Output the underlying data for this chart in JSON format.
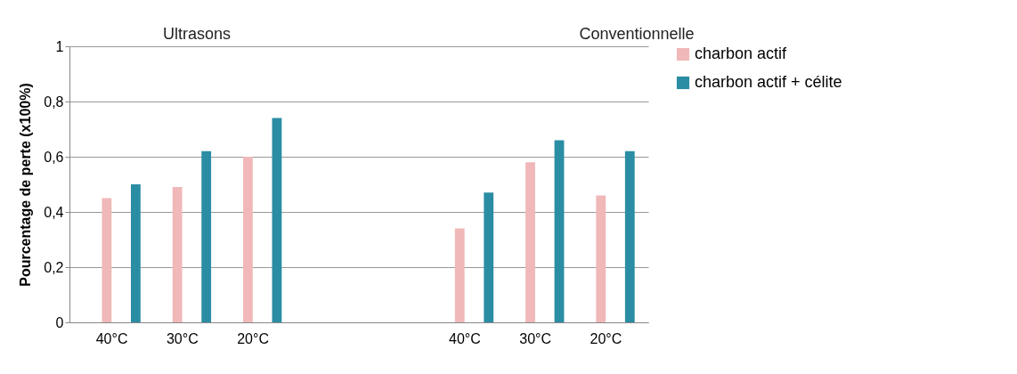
{
  "chart_data": {
    "type": "bar",
    "ylabel": "Pourcentage de perte (x100%)",
    "categories": [
      "40°C",
      "30°C",
      "20°C",
      null,
      null,
      "40°C",
      "30°C",
      "20°C"
    ],
    "series": [
      {
        "name": "charbon actif",
        "color": "#f0b8b8",
        "values": [
          0.45,
          0.49,
          0.6,
          null,
          null,
          0.34,
          0.58,
          0.46
        ]
      },
      {
        "name": "charbon actif + célite",
        "color": "#2a8da3",
        "values": [
          0.5,
          0.62,
          0.74,
          null,
          null,
          0.47,
          0.66,
          0.62
        ]
      }
    ],
    "ylim": [
      0,
      1
    ],
    "yticks": [
      0,
      {
        "value": 0.2,
        "label": "0,2"
      },
      {
        "value": 0.4,
        "label": "0,4"
      },
      {
        "value": 0.6,
        "label": "0,6"
      },
      {
        "value": 0.8,
        "label": "0,8"
      },
      1
    ],
    "grid": "y",
    "legend": "right",
    "annotations": [
      "Ultrasons",
      "Conventionnelle"
    ]
  }
}
